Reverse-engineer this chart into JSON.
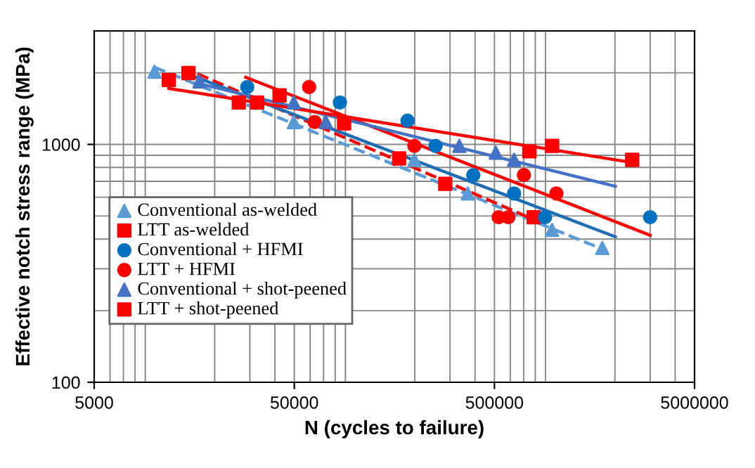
{
  "chart_data": {
    "type": "scatter",
    "xlabel": "N (cycles to failure)",
    "ylabel": "Effective notch stress range (MPa)",
    "log": "xy",
    "xlim": [
      5000,
      5000000
    ],
    "ylim": [
      100,
      3000
    ],
    "xticks": [
      5000,
      50000,
      500000,
      5000000
    ],
    "yticks": [
      100,
      1000
    ],
    "grid": true,
    "legend": "bottom left",
    "series": [
      {
        "name": "Conventional as-welded",
        "marker": "triangle",
        "color": "#5b9bd5",
        "x": [
          10000,
          49700,
          368000,
          970000,
          1730000,
          199000
        ],
        "values": [
          2020,
          1240,
          622,
          437,
          367,
          861
        ]
      },
      {
        "name": "LTT as-welded",
        "marker": "square",
        "color": "#ff0000",
        "x": [
          14800,
          42200,
          167000,
          284000,
          786000
        ],
        "values": [
          1995,
          1607,
          873,
          683,
          494
        ]
      },
      {
        "name": "Conventional + HFMI",
        "marker": "circle",
        "color": "#0070c0",
        "x": [
          29100,
          84500,
          184000,
          254000,
          392000,
          627000,
          895000,
          3000000
        ],
        "values": [
          1742,
          1501,
          1259,
          986,
          743,
          622,
          494,
          494
        ]
      },
      {
        "name": "LTT + HFMI",
        "marker": "circle",
        "color": "#ff0000",
        "x": [
          59300,
          63200,
          199000,
          702000,
          1020000,
          525000,
          587000
        ],
        "values": [
          1742,
          1242,
          986,
          743,
          622,
          494,
          494
        ]
      },
      {
        "name": "Conventional + shot-peened",
        "marker": "triangle",
        "color": "#4472c4",
        "x": [
          16800,
          49700,
          71900,
          334000,
          508000,
          627000
        ],
        "values": [
          1841,
          1501,
          1242,
          986,
          922,
          861
        ]
      },
      {
        "name": "LTT + shot-peened",
        "marker": "square",
        "color": "#ff0000",
        "x": [
          11800,
          26400,
          32600,
          88700,
          748000,
          971000,
          2440000
        ],
        "values": [
          1866,
          1501,
          1501,
          1225,
          935,
          986,
          861
        ]
      },
      {
        "type": "line",
        "line_style": "dashed",
        "color": "#5b9bd5",
        "x": [
          10000,
          1820000
        ],
        "values": [
          2110,
          357
        ]
      },
      {
        "type": "line",
        "line_style": "dashed",
        "color": "#ff0000",
        "x": [
          13800,
          853000
        ],
        "values": [
          2110,
          469
        ]
      },
      {
        "type": "line",
        "line_style": "solid",
        "color": "#1f6db5",
        "x": [
          15500,
          2010000
        ],
        "values": [
          1941,
          409
        ]
      },
      {
        "type": "line",
        "line_style": "solid",
        "color": "#ff0000",
        "x": [
          28600,
          3000000
        ],
        "values": [
          1915,
          415
        ]
      },
      {
        "type": "line",
        "line_style": "solid",
        "color": "#4472c4",
        "x": [
          16200,
          2010000
        ],
        "values": [
          1815,
          667
        ]
      },
      {
        "type": "line",
        "line_style": "solid",
        "color": "#ff0000",
        "x": [
          11800,
          2440000
        ],
        "values": [
          1719,
          839
        ]
      }
    ]
  }
}
